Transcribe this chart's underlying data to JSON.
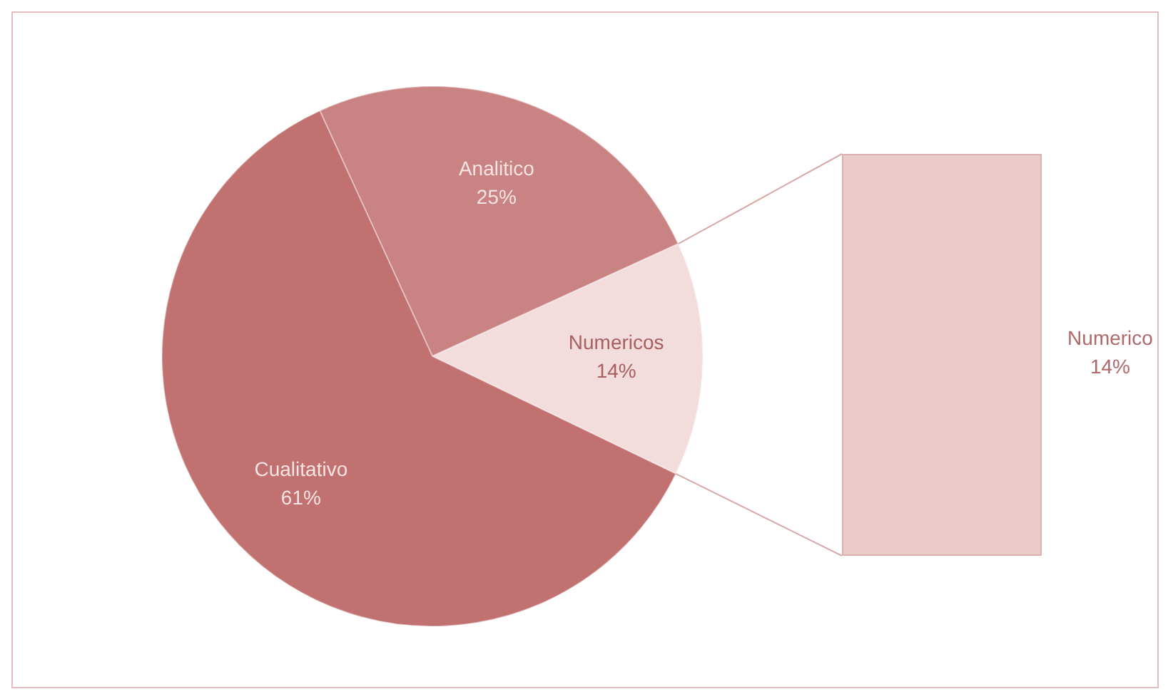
{
  "chart_data": {
    "type": "pie",
    "categories": [
      "Analitico",
      "Numericos",
      "Cualitativo"
    ],
    "values": [
      25,
      14,
      61
    ],
    "colors": [
      "#c98382",
      "#f2dcdc",
      "#c07170"
    ],
    "value_labels": [
      "25%",
      "14%",
      "61%"
    ],
    "annotations": [
      "Numerico 14%"
    ],
    "legend": false
  }
}
